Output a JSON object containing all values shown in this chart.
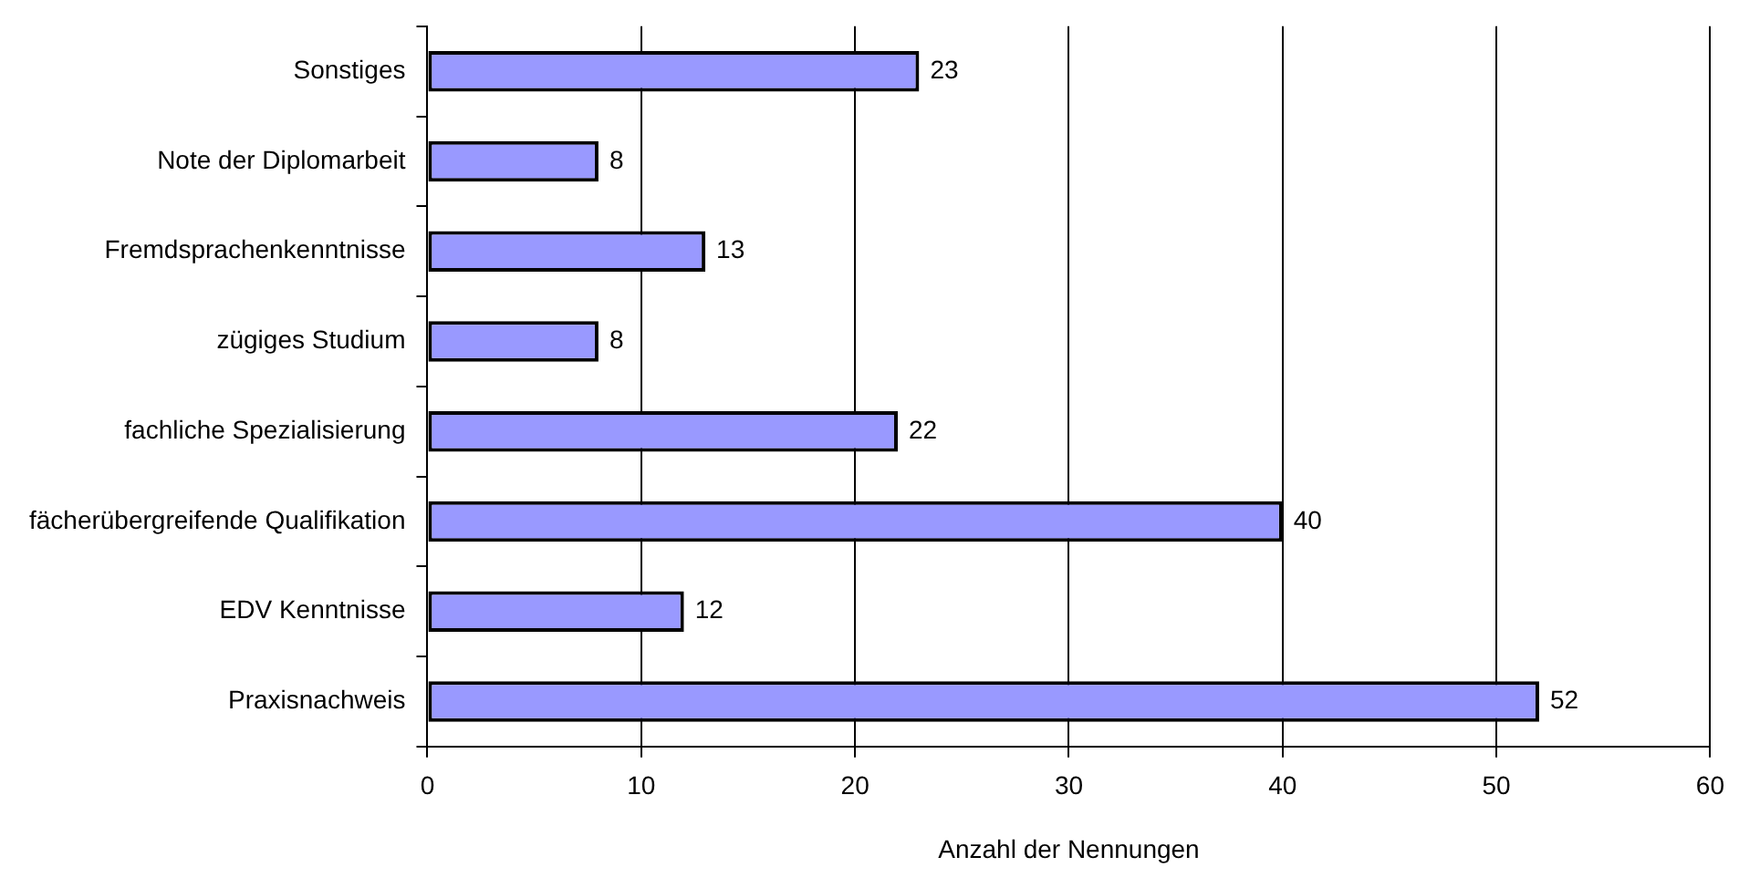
{
  "chart_data": {
    "type": "bar",
    "orientation": "horizontal",
    "xlabel": "Anzahl der Nennungen",
    "categories": [
      "Sonstiges",
      "Note der Diplomarbeit",
      "Fremdsprachenkenntnisse",
      "zügiges Studium",
      "fachliche Spezialisierung",
      "fächerübergreifende Qualifikation",
      "EDV Kenntnisse",
      "Praxisnachweis"
    ],
    "values": [
      23,
      8,
      13,
      8,
      22,
      40,
      12,
      52
    ],
    "color": "#9999ff",
    "xlim": [
      0,
      60
    ],
    "xticks": [
      0,
      10,
      20,
      30,
      40,
      50,
      60
    ],
    "grid": "x",
    "data_labels": true,
    "legend": false
  }
}
